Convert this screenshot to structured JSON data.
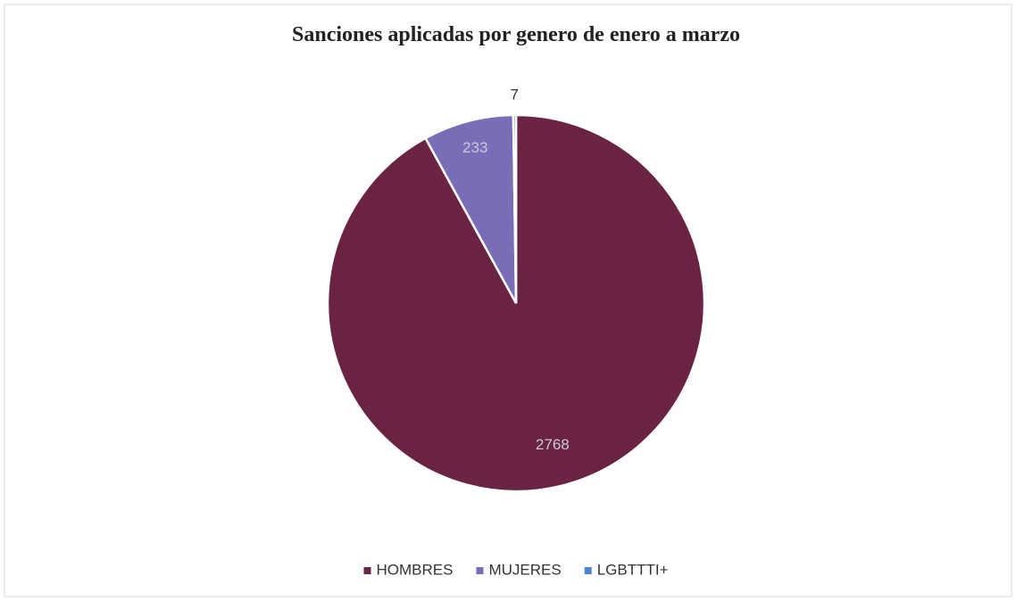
{
  "chart_data": {
    "type": "pie",
    "title": "Sanciones aplicadas por genero de enero a marzo",
    "categories": [
      "HOMBRES",
      "MUJERES",
      "LGBTTTI+"
    ],
    "values": [
      2768,
      233,
      7
    ],
    "colors": [
      "#6a2342",
      "#7a6cb6",
      "#4a86d8"
    ],
    "legend": "bottom"
  }
}
